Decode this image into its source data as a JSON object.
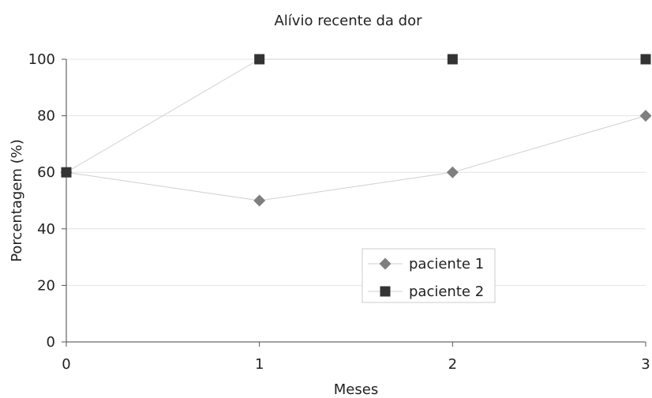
{
  "chart_data": {
    "type": "line",
    "title": "Alívio recente da dor",
    "xlabel": "Meses",
    "ylabel": "Porcentagem (%)",
    "x": [
      0,
      1,
      2,
      3
    ],
    "xlim": [
      0,
      3
    ],
    "ylim": [
      0,
      100
    ],
    "yticks": [
      0,
      20,
      40,
      60,
      80,
      100
    ],
    "grid": true,
    "legend_position": "bottom-center",
    "series": [
      {
        "name": "paciente 1",
        "values": [
          60,
          50,
          60,
          80
        ],
        "marker": "diamond",
        "color": "#7f7f7f"
      },
      {
        "name": "paciente 2",
        "values": [
          60,
          100,
          100,
          100
        ],
        "marker": "square",
        "color": "#333333"
      }
    ]
  }
}
